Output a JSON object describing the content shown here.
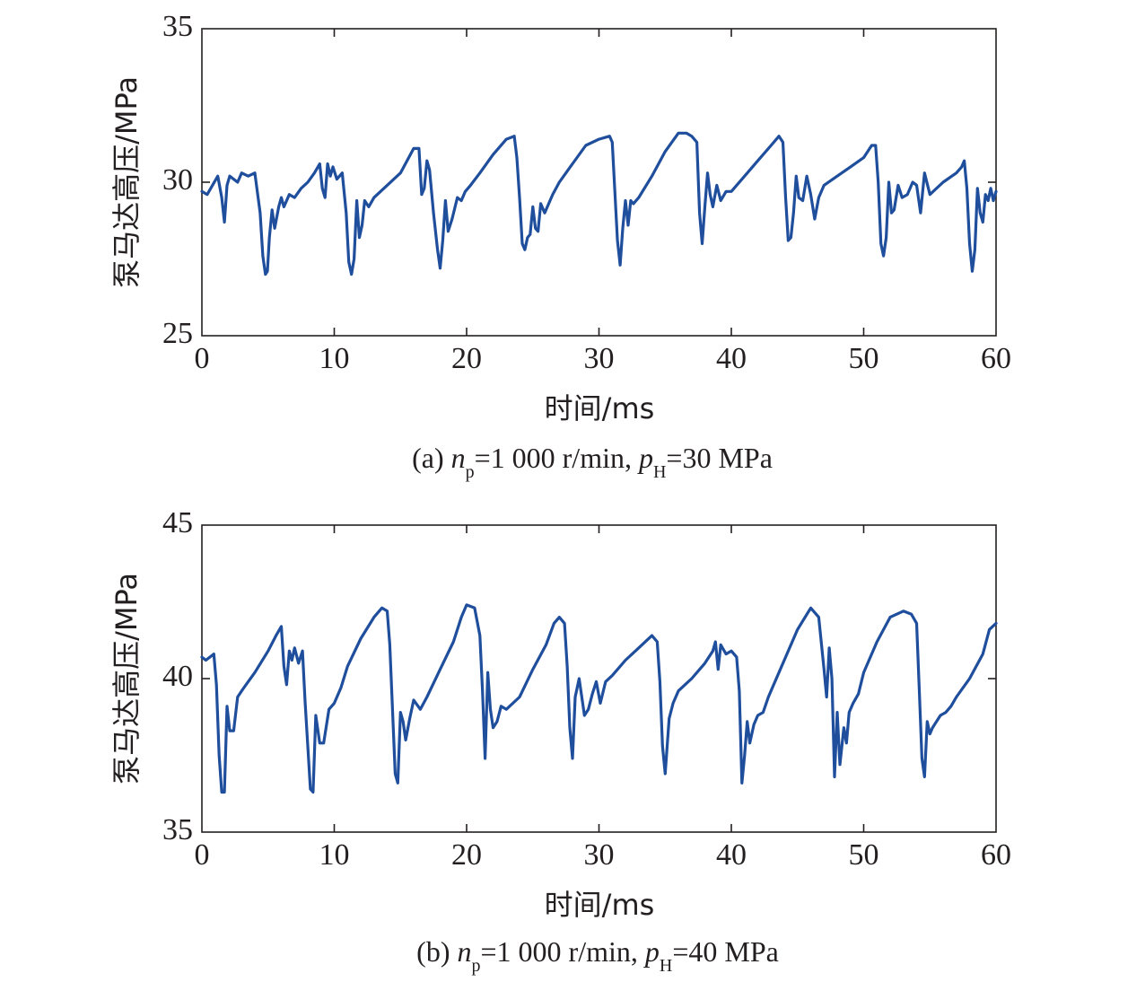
{
  "chart_data": [
    {
      "type": "line",
      "ylabel": "泵马达高压/MPa",
      "xlabel": "时间/ms",
      "caption": {
        "prefix": "(a) ",
        "n": "n",
        "n_sub": "p",
        "mid": "=1 000 r/min, ",
        "p": "p",
        "p_sub": "H",
        "suffix": "=30 MPa"
      },
      "xlim": [
        0,
        60
      ],
      "ylim": [
        25,
        35
      ],
      "xticks": [
        "0",
        "10",
        "20",
        "30",
        "40",
        "50",
        "60"
      ],
      "yticks": [
        "25",
        "30",
        "35"
      ],
      "color": "#1f4e9c",
      "series": [
        {
          "x": [
            0,
            0.4,
            0.8,
            1.2,
            1.5,
            1.7,
            1.9,
            2.1,
            2.4,
            2.7,
            3.0,
            3.5,
            4.0,
            4.4,
            4.6,
            4.8,
            4.95,
            5.1,
            5.3,
            5.5,
            5.8,
            6.0,
            6.2,
            6.6,
            7.0,
            7.5,
            8.0,
            8.5,
            8.9,
            9.1,
            9.3,
            9.5,
            9.7,
            9.9,
            10.2,
            10.6,
            10.9,
            11.1,
            11.3,
            11.5,
            11.7,
            11.9,
            12.1,
            12.3,
            12.6,
            13.0,
            14.0,
            15.0,
            16.0,
            16.4,
            16.6,
            16.8,
            17.0,
            17.2,
            17.5,
            17.8,
            18.0,
            18.2,
            18.4,
            18.6,
            18.9,
            19.3,
            19.6,
            19.9,
            20.3,
            21.0,
            22.0,
            23.0,
            23.6,
            23.8,
            24.0,
            24.2,
            24.4,
            24.6,
            24.8,
            25.0,
            25.2,
            25.4,
            25.6,
            25.9,
            26.2,
            26.5,
            27.0,
            28.0,
            29.0,
            30.0,
            30.8,
            31.0,
            31.2,
            31.4,
            31.6,
            31.8,
            32.0,
            32.2,
            32.4,
            32.6,
            33.0,
            34.0,
            35.0,
            36.0,
            36.6,
            37.0,
            37.4,
            37.6,
            37.8,
            38.0,
            38.2,
            38.4,
            38.6,
            38.9,
            39.2,
            39.6,
            40.0,
            41.0,
            42.0,
            43.0,
            43.6,
            43.9,
            44.1,
            44.3,
            44.5,
            44.7,
            44.9,
            45.1,
            45.4,
            45.7,
            46.0,
            46.3,
            46.6,
            47.0,
            48.0,
            49.0,
            50.0,
            50.6,
            50.9,
            51.1,
            51.3,
            51.5,
            51.7,
            51.9,
            52.1,
            52.3,
            52.6,
            52.9,
            53.3,
            53.7,
            54.0,
            54.3,
            54.6,
            55.0,
            56.0,
            57.0,
            57.4,
            57.6,
            57.8,
            58.0,
            58.2,
            58.4,
            58.6,
            58.8,
            59.0,
            59.2,
            59.4,
            59.6,
            59.8,
            60.0
          ],
          "y": [
            29.7,
            29.6,
            29.9,
            30.2,
            29.5,
            28.7,
            29.9,
            30.2,
            30.1,
            30.0,
            30.3,
            30.2,
            30.3,
            29.0,
            27.6,
            27.0,
            27.1,
            28.2,
            29.1,
            28.5,
            29.2,
            29.5,
            29.2,
            29.6,
            29.5,
            29.8,
            30.0,
            30.3,
            30.6,
            29.8,
            29.5,
            30.6,
            30.2,
            30.5,
            30.1,
            30.3,
            29.0,
            27.4,
            27.0,
            27.5,
            29.4,
            28.2,
            28.6,
            29.4,
            29.2,
            29.5,
            29.9,
            30.3,
            31.1,
            31.1,
            29.6,
            29.8,
            30.7,
            30.4,
            29.0,
            27.8,
            27.2,
            28.1,
            29.4,
            28.4,
            28.8,
            29.5,
            29.4,
            29.7,
            29.9,
            30.3,
            30.9,
            31.4,
            31.5,
            30.8,
            29.5,
            28.0,
            27.8,
            28.2,
            28.3,
            29.2,
            28.5,
            28.4,
            29.3,
            29.0,
            29.3,
            29.6,
            30.0,
            30.6,
            31.2,
            31.4,
            31.5,
            31.3,
            29.7,
            28.1,
            27.3,
            28.5,
            29.4,
            28.6,
            29.4,
            29.3,
            29.5,
            30.2,
            31.0,
            31.6,
            31.6,
            31.5,
            31.3,
            29.0,
            28.0,
            29.2,
            30.3,
            29.6,
            29.2,
            29.9,
            29.4,
            29.7,
            29.7,
            30.2,
            30.7,
            31.2,
            31.5,
            31.3,
            29.5,
            28.1,
            28.2,
            29.0,
            30.2,
            29.5,
            29.4,
            30.2,
            29.6,
            28.8,
            29.5,
            29.9,
            30.2,
            30.5,
            30.8,
            31.2,
            31.2,
            30.0,
            28.0,
            27.6,
            28.2,
            30.0,
            29.0,
            29.1,
            29.9,
            29.5,
            29.6,
            30.0,
            29.9,
            29.0,
            30.3,
            29.6,
            30.0,
            30.3,
            30.5,
            30.7,
            29.8,
            28.0,
            27.1,
            27.8,
            29.8,
            29.0,
            28.7,
            29.6,
            29.4,
            29.8,
            29.4,
            29.7
          ]
        }
      ]
    },
    {
      "type": "line",
      "ylabel": "泵马达高压/MPa",
      "xlabel": "时间/ms",
      "caption": {
        "prefix": "(b) ",
        "n": "n",
        "n_sub": "p",
        "mid": "=1 000 r/min, ",
        "p": "p",
        "p_sub": "H",
        "suffix": "=40 MPa"
      },
      "xlim": [
        0,
        60
      ],
      "ylim": [
        35,
        45
      ],
      "xticks": [
        "0",
        "10",
        "20",
        "30",
        "40",
        "50",
        "60"
      ],
      "yticks": [
        "35",
        "40",
        "45"
      ],
      "color": "#1f4e9c",
      "series": [
        {
          "x": [
            0,
            0.3,
            0.6,
            0.9,
            1.1,
            1.3,
            1.5,
            1.7,
            1.9,
            2.1,
            2.4,
            2.7,
            3.0,
            3.5,
            4.0,
            5.0,
            5.6,
            6.0,
            6.2,
            6.4,
            6.6,
            6.8,
            7.0,
            7.3,
            7.6,
            7.8,
            8.0,
            8.2,
            8.4,
            8.6,
            8.9,
            9.2,
            9.6,
            10.0,
            10.5,
            11.0,
            12.0,
            13.0,
            13.6,
            14.0,
            14.2,
            14.4,
            14.6,
            14.8,
            15.0,
            15.2,
            15.4,
            15.7,
            16.0,
            16.5,
            17.0,
            18.0,
            19.0,
            19.6,
            20.0,
            20.6,
            21.0,
            21.2,
            21.4,
            21.6,
            21.8,
            22.0,
            22.3,
            22.6,
            23.0,
            24.0,
            25.0,
            26.0,
            26.6,
            27.0,
            27.4,
            27.6,
            27.8,
            28.0,
            28.2,
            28.5,
            28.9,
            29.2,
            29.5,
            29.8,
            30.1,
            30.5,
            31.0,
            32.0,
            33.0,
            34.0,
            34.4,
            34.6,
            34.8,
            35.0,
            35.3,
            35.6,
            36.0,
            36.5,
            37.0,
            38.0,
            38.6,
            38.8,
            39.0,
            39.2,
            39.6,
            40.0,
            40.4,
            40.6,
            40.8,
            41.0,
            41.2,
            41.4,
            41.7,
            42.0,
            42.4,
            42.8,
            43.2,
            44.0,
            45.0,
            46.0,
            46.6,
            47.0,
            47.2,
            47.4,
            47.6,
            47.8,
            48.0,
            48.2,
            48.5,
            48.7,
            48.9,
            49.2,
            49.6,
            50.0,
            51.0,
            52.0,
            53.0,
            53.6,
            54.0,
            54.2,
            54.4,
            54.6,
            54.8,
            55.0,
            55.2,
            55.5,
            55.8,
            56.2,
            56.6,
            57.0,
            58.0,
            59.0,
            59.5,
            60.0
          ],
          "y": [
            40.7,
            40.6,
            40.7,
            40.8,
            39.8,
            37.5,
            36.3,
            36.3,
            39.1,
            38.3,
            38.3,
            39.4,
            39.6,
            39.9,
            40.2,
            40.9,
            41.4,
            41.7,
            40.4,
            39.8,
            40.9,
            40.6,
            41.0,
            40.5,
            40.9,
            39.2,
            37.8,
            36.4,
            36.3,
            38.8,
            37.9,
            37.9,
            39.0,
            39.2,
            39.7,
            40.4,
            41.3,
            42.0,
            42.3,
            42.2,
            41.1,
            39.0,
            36.9,
            36.6,
            38.9,
            38.6,
            38.0,
            38.7,
            39.3,
            39.0,
            39.4,
            40.3,
            41.2,
            42.0,
            42.4,
            42.3,
            41.4,
            39.6,
            37.4,
            40.2,
            39.0,
            38.4,
            38.6,
            39.1,
            39.0,
            39.4,
            40.3,
            41.1,
            41.8,
            42.0,
            41.8,
            40.4,
            38.4,
            37.4,
            39.4,
            40.0,
            38.8,
            39.0,
            39.5,
            39.9,
            39.2,
            39.9,
            40.1,
            40.6,
            41.0,
            41.4,
            41.2,
            39.9,
            37.8,
            36.9,
            38.7,
            39.2,
            39.6,
            39.8,
            40.0,
            40.5,
            40.9,
            41.2,
            40.3,
            41.1,
            40.8,
            40.9,
            40.7,
            39.6,
            36.6,
            37.5,
            38.6,
            37.9,
            38.5,
            38.8,
            38.9,
            39.4,
            39.8,
            40.6,
            41.6,
            42.3,
            42.0,
            40.3,
            39.4,
            41.0,
            40.0,
            36.8,
            38.9,
            37.2,
            38.4,
            37.9,
            38.9,
            39.2,
            39.5,
            40.2,
            41.2,
            42.0,
            42.2,
            42.1,
            41.8,
            39.6,
            37.4,
            36.8,
            38.6,
            38.2,
            38.4,
            38.6,
            38.8,
            38.9,
            39.1,
            39.4,
            40.0,
            40.8,
            41.6,
            41.8
          ]
        }
      ]
    }
  ]
}
